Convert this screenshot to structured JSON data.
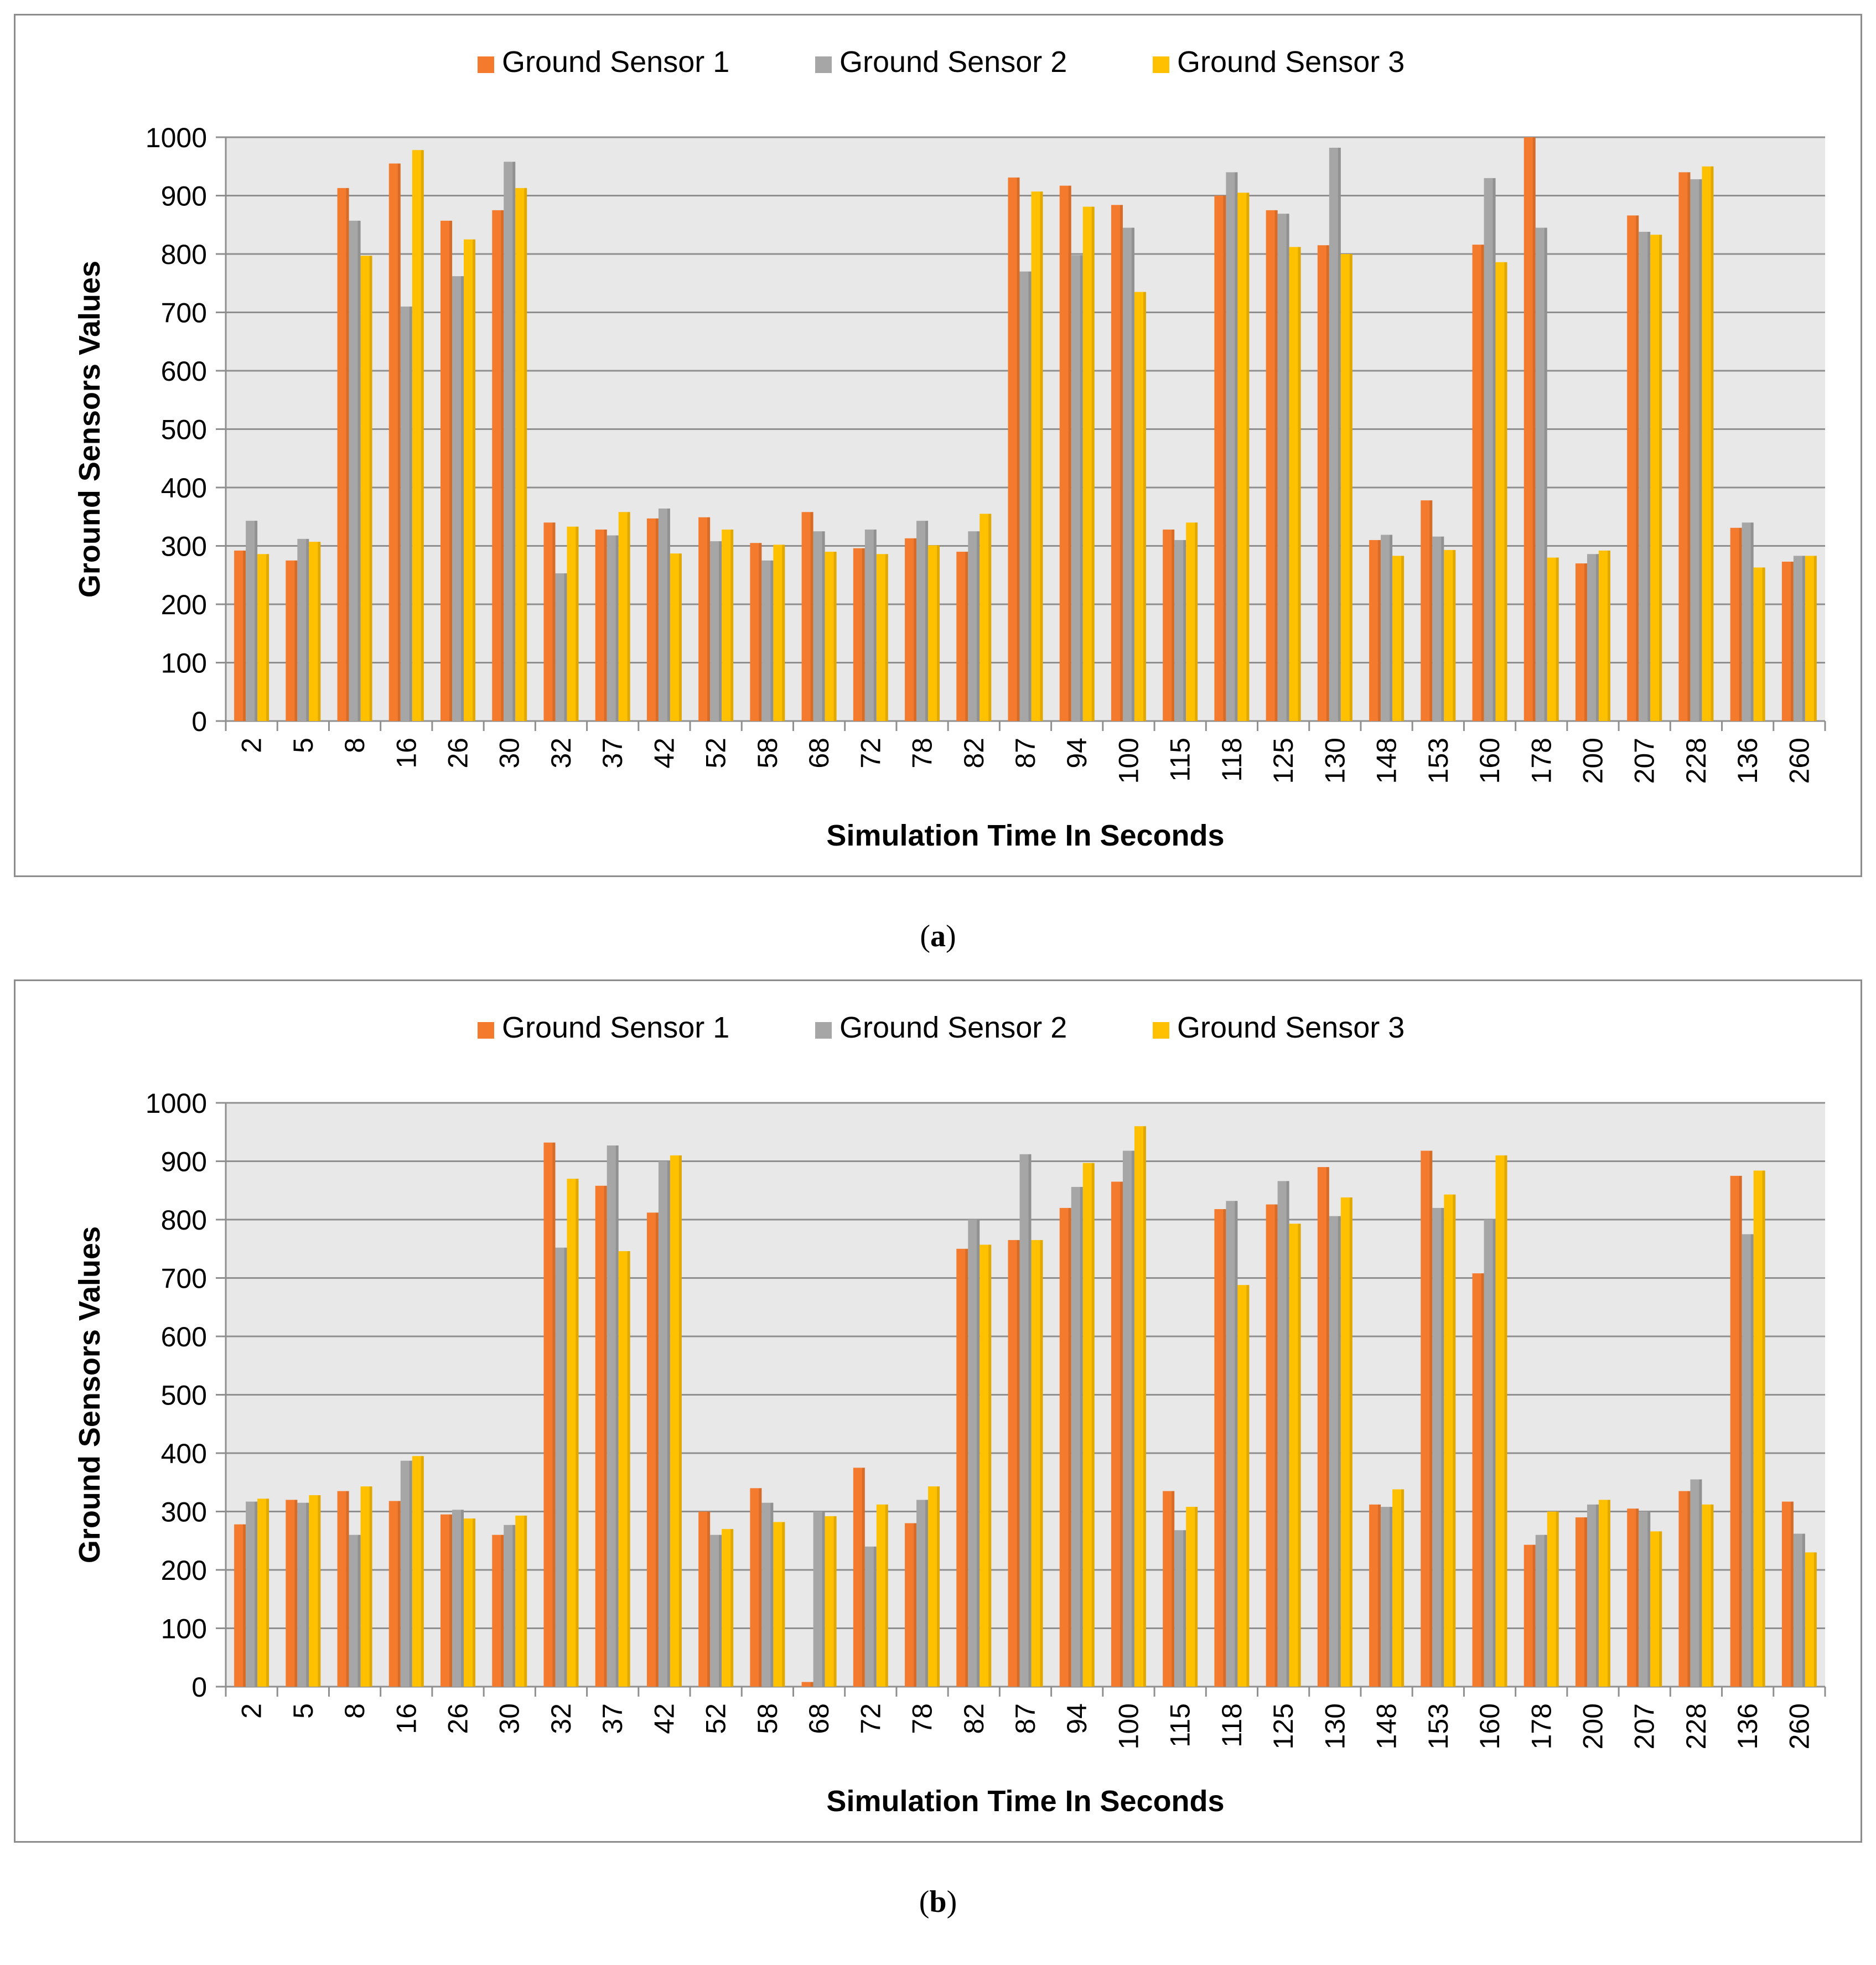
{
  "chart_data": [
    {
      "id": "a",
      "type": "bar",
      "caption_label": "a",
      "xlabel": "Simulation Time In Seconds",
      "ylabel": "Ground Sensors Values",
      "ylim": [
        0,
        1000
      ],
      "yticks": [
        "0",
        "100",
        "200",
        "300",
        "400",
        "500",
        "600",
        "700",
        "800",
        "900",
        "1000"
      ],
      "legend_position": "top-center",
      "grid": true,
      "categories": [
        "2",
        "5",
        "8",
        "16",
        "26",
        "30",
        "32",
        "37",
        "42",
        "52",
        "58",
        "68",
        "72",
        "78",
        "82",
        "87",
        "94",
        "100",
        "115",
        "118",
        "125",
        "130",
        "148",
        "153",
        "160",
        "178",
        "200",
        "207",
        "228",
        "136",
        "260"
      ],
      "series": [
        {
          "name": "Ground Sensor 1",
          "color": "#f47b2e",
          "values": [
            292,
            275,
            913,
            955,
            857,
            875,
            340,
            328,
            347,
            349,
            305,
            358,
            296,
            313,
            290,
            931,
            917,
            884,
            328,
            900,
            875,
            815,
            310,
            378,
            816,
            1000,
            270,
            866,
            940,
            331,
            273
          ]
        },
        {
          "name": "Ground Sensor 2",
          "color": "#a6a6a6",
          "values": [
            343,
            312,
            857,
            710,
            762,
            958,
            253,
            318,
            364,
            308,
            275,
            325,
            328,
            343,
            325,
            770,
            798,
            845,
            310,
            940,
            869,
            982,
            319,
            316,
            930,
            845,
            286,
            838,
            928,
            340,
            283
          ]
        },
        {
          "name": "Ground Sensor 3",
          "color": "#ffc000",
          "values": [
            286,
            307,
            797,
            978,
            825,
            913,
            333,
            358,
            287,
            328,
            302,
            290,
            286,
            301,
            355,
            907,
            881,
            735,
            340,
            905,
            812,
            800,
            283,
            293,
            786,
            280,
            292,
            833,
            950,
            263,
            283
          ]
        }
      ]
    },
    {
      "id": "b",
      "type": "bar",
      "caption_label": "b",
      "xlabel": "Simulation Time In Seconds",
      "ylabel": "Ground Sensors Values",
      "ylim": [
        0,
        1000
      ],
      "yticks": [
        "0",
        "100",
        "200",
        "300",
        "400",
        "500",
        "600",
        "700",
        "800",
        "900",
        "1000"
      ],
      "legend_position": "top-center",
      "grid": true,
      "categories": [
        "2",
        "5",
        "8",
        "16",
        "26",
        "30",
        "32",
        "37",
        "42",
        "52",
        "58",
        "68",
        "72",
        "78",
        "82",
        "87",
        "94",
        "100",
        "115",
        "118",
        "125",
        "130",
        "148",
        "153",
        "160",
        "178",
        "200",
        "207",
        "228",
        "136",
        "260"
      ],
      "series": [
        {
          "name": "Ground Sensor 1",
          "color": "#f47b2e",
          "values": [
            278,
            320,
            335,
            318,
            295,
            260,
            932,
            858,
            812,
            300,
            340,
            8,
            375,
            280,
            750,
            765,
            820,
            865,
            335,
            818,
            826,
            890,
            312,
            918,
            708,
            243,
            290,
            305,
            335,
            875,
            317
          ]
        },
        {
          "name": "Ground Sensor 2",
          "color": "#a6a6a6",
          "values": [
            317,
            315,
            260,
            387,
            303,
            277,
            752,
            927,
            900,
            260,
            315,
            300,
            240,
            320,
            800,
            912,
            856,
            918,
            268,
            832,
            866,
            806,
            308,
            820,
            800,
            260,
            312,
            300,
            355,
            775,
            262
          ]
        },
        {
          "name": "Ground Sensor 3",
          "color": "#ffc000",
          "values": [
            322,
            328,
            343,
            395,
            288,
            293,
            870,
            746,
            910,
            270,
            282,
            292,
            312,
            343,
            757,
            765,
            897,
            960,
            308,
            688,
            793,
            838,
            338,
            843,
            910,
            300,
            320,
            266,
            312,
            884,
            230
          ]
        }
      ]
    }
  ]
}
